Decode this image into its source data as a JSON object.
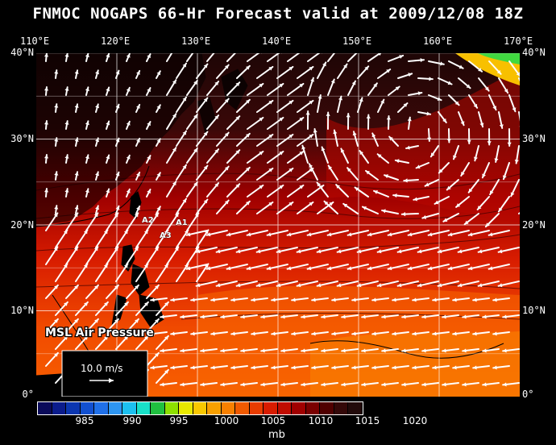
{
  "title": "FNMOC NOGAPS 66-Hr Forecast valid at 2009/12/08 18Z",
  "lon_labels": [
    "110°E",
    "120°E",
    "130°E",
    "140°E",
    "150°E",
    "160°E",
    "170°E"
  ],
  "lat_labels": [
    "40°N",
    "30°N",
    "20°N",
    "10°N",
    "0°"
  ],
  "layer_label": "MSL Air Pressure",
  "legend": {
    "vector_label": "10.0 m/s"
  },
  "storm_markers": [
    "A1",
    "A2",
    "A3"
  ],
  "colorbar": {
    "labels": [
      "985",
      "990",
      "995",
      "1000",
      "1005",
      "1010",
      "1015",
      "1020"
    ],
    "unit": "mb",
    "colors": [
      "#0b0b5a",
      "#0b1c8c",
      "#0b36b0",
      "#1250d0",
      "#2070e8",
      "#2e95f0",
      "#1cc0f0",
      "#18e0c8",
      "#20c040",
      "#8ee000",
      "#e8e800",
      "#f8c800",
      "#f8a000",
      "#f88000",
      "#f05a00",
      "#e83c00",
      "#d81c00",
      "#c00c00",
      "#a00000",
      "#7a0000",
      "#500000",
      "#340808",
      "#220a0a"
    ]
  }
}
